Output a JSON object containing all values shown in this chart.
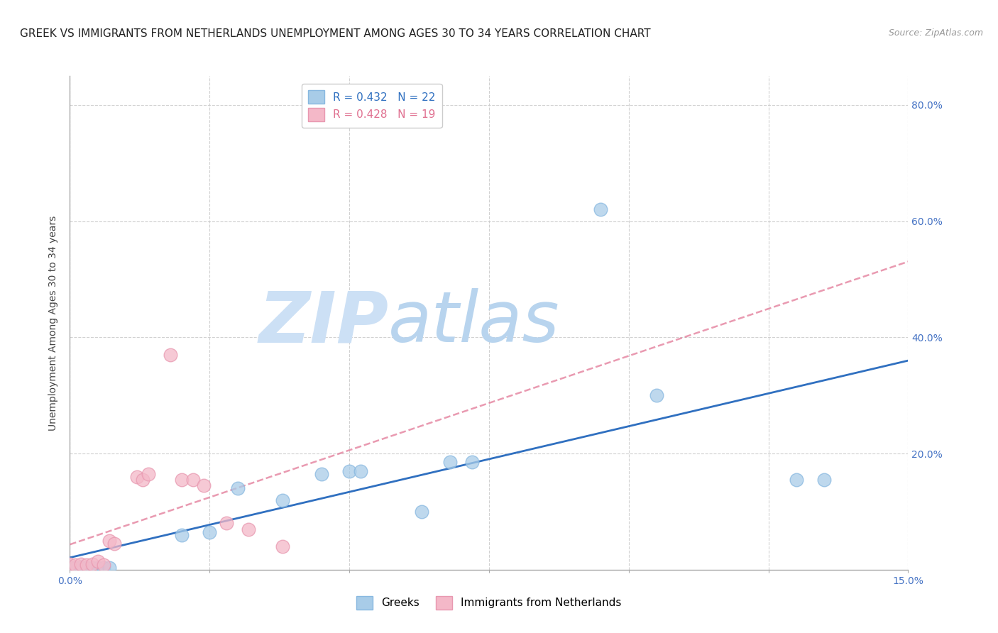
{
  "title": "GREEK VS IMMIGRANTS FROM NETHERLANDS UNEMPLOYMENT AMONG AGES 30 TO 34 YEARS CORRELATION CHART",
  "source": "Source: ZipAtlas.com",
  "ylabel": "Unemployment Among Ages 30 to 34 years",
  "xlim": [
    0.0,
    0.15
  ],
  "ylim": [
    0.0,
    0.85
  ],
  "xticks": [
    0.0,
    0.025,
    0.05,
    0.075,
    0.1,
    0.125,
    0.15
  ],
  "xtick_labels": [
    "0.0%",
    "",
    "",
    "",
    "",
    "",
    "15.0%"
  ],
  "yticks_right": [
    0.2,
    0.4,
    0.6,
    0.8
  ],
  "ytick_labels_right": [
    "20.0%",
    "40.0%",
    "60.0%",
    "80.0%"
  ],
  "greek_R": 0.432,
  "greek_N": 22,
  "netherlands_R": 0.428,
  "netherlands_N": 19,
  "greeks_x": [
    0.0,
    0.001,
    0.002,
    0.003,
    0.004,
    0.005,
    0.006,
    0.007,
    0.02,
    0.025,
    0.03,
    0.038,
    0.045,
    0.05,
    0.052,
    0.063,
    0.068,
    0.072,
    0.095,
    0.105,
    0.13,
    0.135
  ],
  "greeks_y": [
    0.005,
    0.003,
    0.005,
    0.004,
    0.003,
    0.003,
    0.004,
    0.003,
    0.06,
    0.065,
    0.14,
    0.12,
    0.165,
    0.17,
    0.17,
    0.1,
    0.185,
    0.185,
    0.62,
    0.3,
    0.155,
    0.155
  ],
  "netherlands_x": [
    0.0,
    0.001,
    0.002,
    0.003,
    0.004,
    0.005,
    0.006,
    0.007,
    0.008,
    0.012,
    0.013,
    0.014,
    0.018,
    0.02,
    0.022,
    0.024,
    0.028,
    0.032,
    0.038
  ],
  "netherlands_y": [
    0.01,
    0.008,
    0.01,
    0.008,
    0.01,
    0.015,
    0.008,
    0.05,
    0.045,
    0.16,
    0.155,
    0.165,
    0.37,
    0.155,
    0.155,
    0.145,
    0.08,
    0.07,
    0.04
  ],
  "greek_color": "#a8cce8",
  "netherlands_color": "#f4b8c8",
  "greek_line_color": "#3070c0",
  "netherlands_line_color": "#e07090",
  "background_color": "#ffffff",
  "grid_color": "#cccccc",
  "watermark_zip_color": "#cce0f5",
  "watermark_atlas_color": "#b8d4ee",
  "title_fontsize": 11,
  "axis_label_fontsize": 10,
  "tick_fontsize": 10,
  "legend_fontsize": 11
}
